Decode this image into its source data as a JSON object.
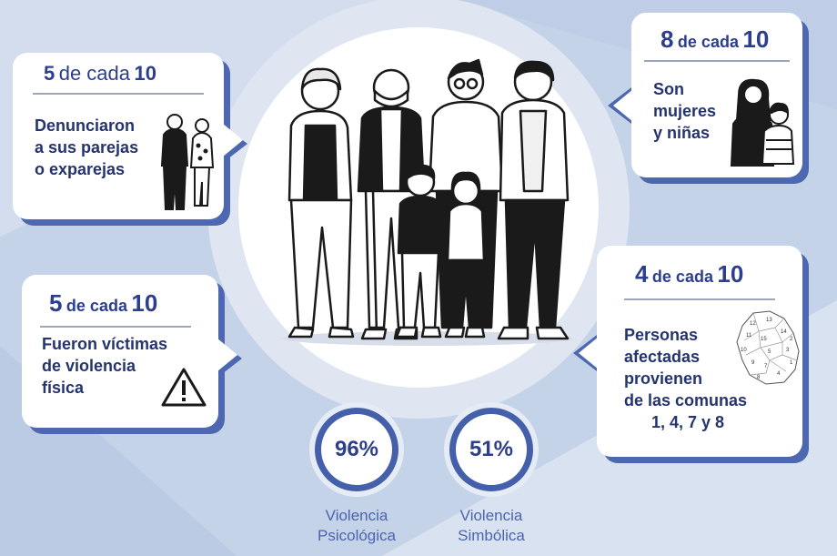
{
  "cards": {
    "denunciaron": {
      "count": "5",
      "connector": "de cada",
      "total": "10",
      "lines": [
        "Denunciaron",
        "a sus parejas",
        "o exparejas"
      ]
    },
    "mujeres": {
      "count": "8",
      "connector": "de cada",
      "total": "10",
      "lines": [
        "Son",
        "mujeres",
        "y niñas"
      ]
    },
    "fisica": {
      "count": "5",
      "connector": "de cada",
      "total": "10",
      "lines": [
        "Fueron víctimas",
        "de violencia",
        "física"
      ]
    },
    "comunas": {
      "count": "4",
      "connector": "de cada",
      "total": "10",
      "lines": [
        "Personas",
        "afectadas",
        "provienen",
        "de las comunas",
        "1, 4, 7 y 8"
      ]
    }
  },
  "stats": [
    {
      "value": "96%",
      "label_lines": [
        "Violencia",
        "Psicológica"
      ]
    },
    {
      "value": "51%",
      "label_lines": [
        "Violencia",
        "Simbólica"
      ]
    }
  ],
  "map_labels": [
    "12",
    "13",
    "15",
    "11",
    "14",
    "2",
    "10",
    "5",
    "3",
    "9",
    "7",
    "1",
    "4",
    "8"
  ],
  "icons": {
    "family": "family-group-icon",
    "couple": "couple-icon",
    "mother_child": "mother-child-icon",
    "warning": "warning-icon",
    "map": "city-map-icon"
  },
  "colors": {
    "accent": "#4d68b0",
    "text": "#2c3e8c",
    "background": "#c9d6ea"
  }
}
